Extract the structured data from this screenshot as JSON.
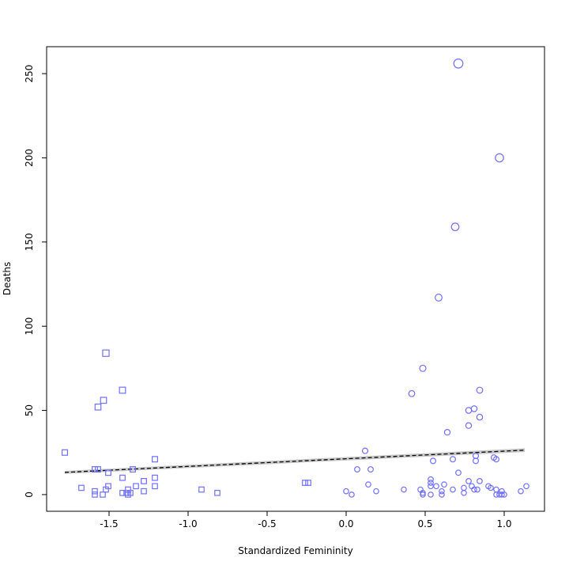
{
  "chart_data": {
    "type": "scatter",
    "x_label": "Standardized Femininity",
    "y_label": "Deaths",
    "xlim": [
      -1.895,
      1.255
    ],
    "ylim": [
      -9.9,
      266
    ],
    "xticks": [
      {
        "value": -1.5,
        "label": "-1.5"
      },
      {
        "value": -1,
        "label": "-1.0"
      },
      -0.5,
      {
        "value": 0,
        "label": "0.0"
      },
      0.5,
      {
        "value": 1,
        "label": "1.0"
      }
    ],
    "yticks": [
      0,
      50,
      100,
      150,
      200,
      250
    ],
    "series": [
      {
        "marker": "square",
        "color": "#7070ff",
        "x": [
          -1.78,
          -1.675,
          -1.59,
          -1.59,
          -1.59,
          -1.57,
          -1.57,
          -1.54,
          -1.535,
          -1.52,
          -1.505,
          -1.505,
          -1.52,
          -1.415,
          -1.415,
          -1.415,
          -1.39,
          -1.38,
          -1.38,
          -1.365,
          -1.35,
          -1.33,
          -1.28,
          -1.28,
          -1.21,
          -1.21,
          -1.21,
          -0.915,
          -0.815,
          -0.26,
          -0.24
        ],
        "y": [
          25,
          4,
          2,
          0,
          15,
          15,
          52,
          0,
          56,
          84,
          13,
          5,
          3,
          62,
          10,
          1,
          1,
          0,
          3,
          1,
          15,
          5,
          8,
          2,
          21,
          10,
          5,
          3,
          1,
          7,
          7
        ]
      },
      {
        "marker": "circle",
        "color": "#7070ff",
        "x": [
          0.71,
          0.97,
          0.69,
          0.585,
          0.485,
          0.415,
          0.845,
          0.81,
          0.775,
          0.845,
          0.775,
          0.64,
          0.12,
          0.07,
          0.155,
          0.55,
          0.675,
          0.82,
          0.82,
          0.935,
          0.95,
          0.71,
          0,
          0.035,
          0.14,
          0.19,
          0.365,
          0.47,
          0.485,
          0.485,
          0.535,
          0.535,
          0.535,
          0.535,
          0.57,
          0.605,
          0.605,
          0.62,
          0.675,
          0.745,
          0.745,
          0.775,
          0.795,
          0.81,
          0.83,
          0.845,
          0.9,
          0.915,
          0.95,
          0.95,
          0.97,
          0.985,
          0.985,
          1.0,
          1.105,
          1.14
        ],
        "y": [
          256,
          200,
          159,
          117,
          75,
          60,
          62,
          51,
          50,
          46,
          41,
          37,
          26,
          15,
          15,
          20,
          21,
          23,
          20,
          22,
          21,
          13,
          2,
          0,
          6,
          2,
          3,
          3,
          1,
          0,
          9,
          7,
          5,
          0,
          5,
          0,
          2,
          6,
          3,
          4,
          1,
          8,
          5,
          3,
          3,
          8,
          5,
          4,
          3,
          0,
          0,
          2,
          0,
          0,
          2,
          5
        ]
      }
    ],
    "fit": {
      "x": [
        -1.78,
        1.13
      ],
      "y": [
        13.2,
        26.4
      ],
      "lower": [
        12.3,
        25.3
      ],
      "upper": [
        14.1,
        27.5
      ],
      "color": "#000000",
      "band_color": "#c8c8c8"
    }
  }
}
